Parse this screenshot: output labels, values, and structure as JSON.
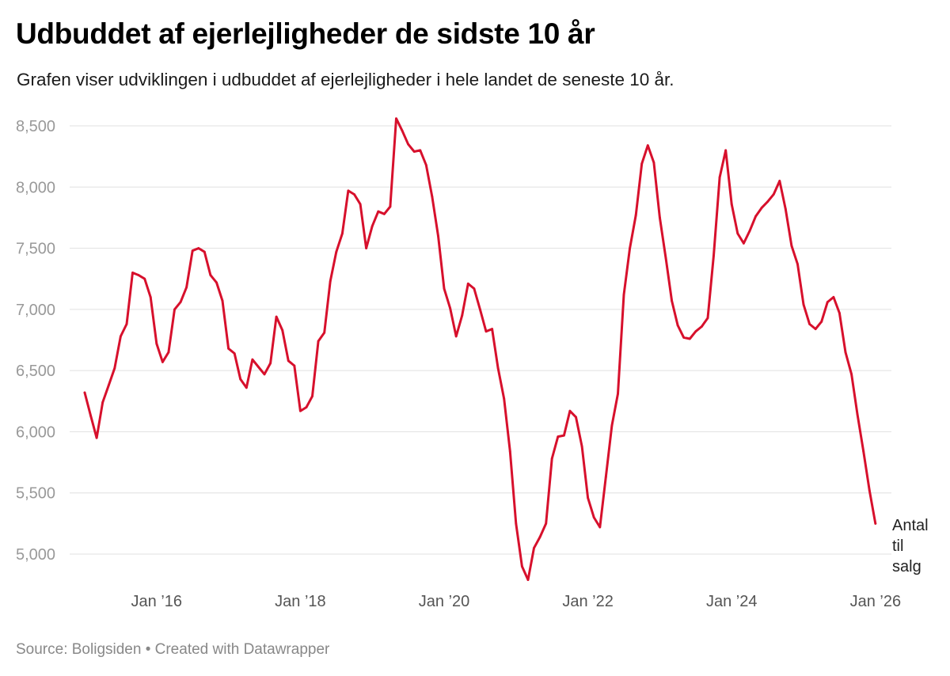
{
  "header": {
    "title": "Udbuddet af ejerlejligheder de sidste 10 år",
    "subtitle": "Grafen viser udviklingen i udbuddet af ejerlejligheder i hele landet de seneste 10 år."
  },
  "footer": {
    "source": "Source: Boligsiden • Created with Datawrapper"
  },
  "chart_data": {
    "type": "line",
    "title": "Udbuddet af ejerlejligheder de sidste 10 år",
    "xlabel": "",
    "ylabel": "",
    "ylim": [
      4800,
      8600
    ],
    "yticks": [
      5000,
      5500,
      6000,
      6500,
      7000,
      7500,
      8000,
      8500
    ],
    "ytick_labels": [
      "5,000",
      "5,500",
      "6,000",
      "6,500",
      "7,000",
      "7,500",
      "8,000",
      "8,500"
    ],
    "xticks": [
      12,
      36,
      60,
      84,
      108,
      132
    ],
    "xtick_labels": [
      "Jan ’16",
      "Jan ’18",
      "Jan ’20",
      "Jan ’22",
      "Jan ’24",
      "Jan ’26"
    ],
    "x_start": "Jan 2015",
    "x_unit": "month",
    "grid": true,
    "line_color": "#d7102c",
    "series": [
      {
        "name": "Antal til salg",
        "label_lines": [
          "Antal",
          "til",
          "salg"
        ],
        "values": [
          6320,
          6130,
          5950,
          6240,
          6380,
          6520,
          6780,
          6880,
          7300,
          7280,
          7250,
          7100,
          6720,
          6570,
          6650,
          7000,
          7060,
          7180,
          7480,
          7500,
          7470,
          7280,
          7220,
          7070,
          6680,
          6640,
          6430,
          6360,
          6590,
          6530,
          6470,
          6560,
          6940,
          6830,
          6580,
          6540,
          6170,
          6200,
          6290,
          6740,
          6810,
          7230,
          7470,
          7620,
          7970,
          7940,
          7860,
          7500,
          7680,
          7800,
          7780,
          7840,
          8560,
          8460,
          8350,
          8290,
          8300,
          8180,
          7920,
          7600,
          7170,
          7010,
          6780,
          6950,
          7210,
          7170,
          7000,
          6820,
          6840,
          6520,
          6270,
          5840,
          5250,
          4900,
          4790,
          5050,
          5140,
          5250,
          5780,
          5960,
          5970,
          6170,
          6120,
          5880,
          5460,
          5300,
          5220,
          5630,
          6050,
          6310,
          7120,
          7500,
          7770,
          8190,
          8340,
          8200,
          7750,
          7420,
          7070,
          6870,
          6770,
          6760,
          6820,
          6860,
          6930,
          7440,
          8080,
          8300,
          7860,
          7620,
          7540,
          7640,
          7760,
          7830,
          7880,
          7940,
          8050,
          7820,
          7520,
          7370,
          7040,
          6880,
          6840,
          6900,
          7060,
          7100,
          6970,
          6650,
          6470,
          6140,
          5840,
          5520,
          5250
        ]
      }
    ]
  }
}
